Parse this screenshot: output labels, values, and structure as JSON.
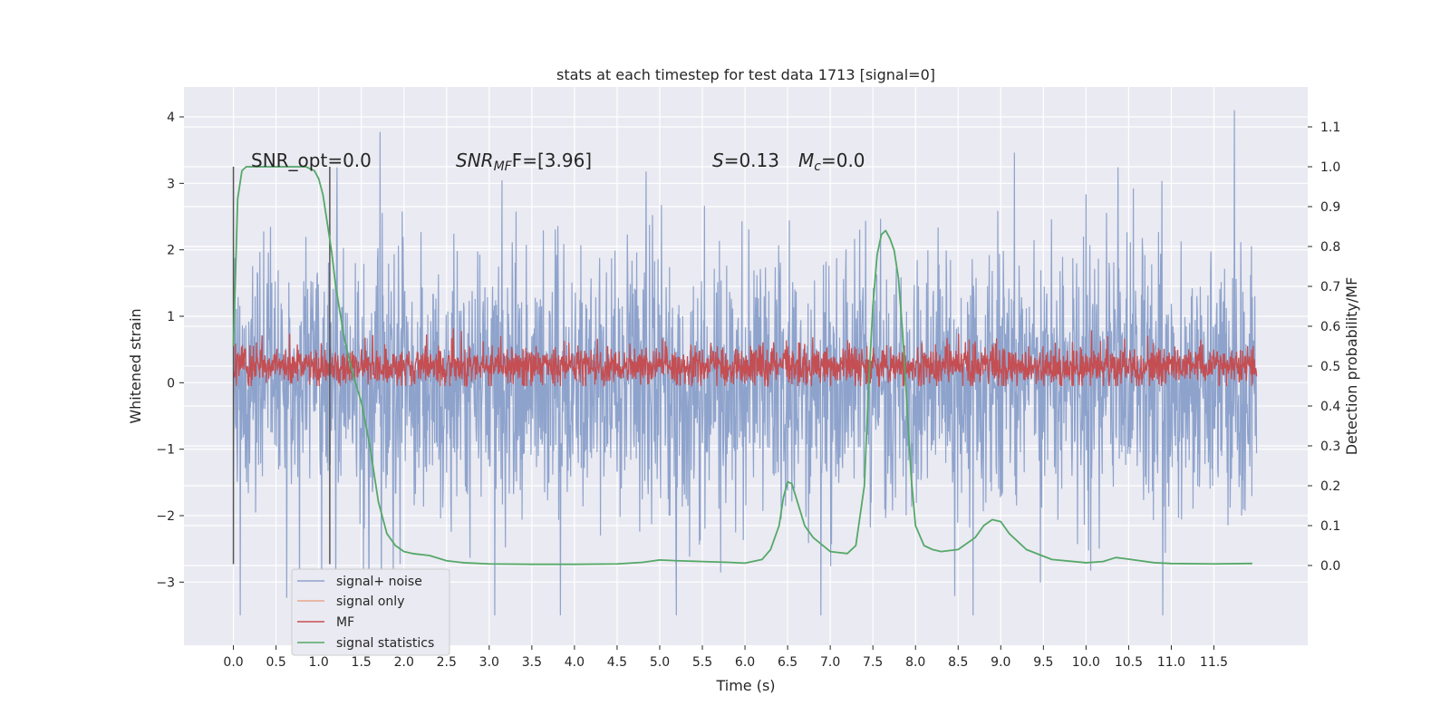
{
  "chart_data": {
    "type": "line",
    "title": "stats at each timestep for test data 1713 [signal=0]",
    "xlabel": "Time (s)",
    "ylabel": "Whitened strain",
    "y2label": "Detection probability/MF",
    "xlim": [
      -0.58,
      12.6
    ],
    "ylim": [
      -3.95,
      4.45
    ],
    "y2lim": [
      -0.2,
      1.2
    ],
    "x_ticks": [
      "0.0",
      "0.5",
      "1.0",
      "1.5",
      "2.0",
      "2.5",
      "3.0",
      "3.5",
      "4.0",
      "4.5",
      "5.0",
      "5.5",
      "6.0",
      "6.5",
      "7.0",
      "7.5",
      "8.0",
      "8.5",
      "9.0",
      "9.5",
      "10.0",
      "10.5",
      "11.0",
      "11.5"
    ],
    "y_ticks": [
      "4",
      "3",
      "2",
      "1",
      "0",
      "−1",
      "−2",
      "−3"
    ],
    "y2_ticks": [
      "1.1",
      "1.0",
      "0.9",
      "0.8",
      "0.7",
      "0.6",
      "0.5",
      "0.4",
      "0.3",
      "0.2",
      "0.1",
      "0.0"
    ],
    "grid": true,
    "legend_position": "lower-left",
    "annotations": {
      "snr_opt": "SNR_opt=0.0",
      "snr_mf_prefix": "SNR",
      "snr_mf_sub": "MF",
      "snr_mf_suffix": "F=[3.96]",
      "s_label": "S",
      "s_value": "=0.13",
      "mc_label": "M",
      "mc_sub": "c",
      "mc_value": "=0.0"
    },
    "window_markers": [
      0.0,
      1.13
    ],
    "series": [
      {
        "name": "signal+ noise",
        "color": "#8ea3cc",
        "axis": "left",
        "x_range": [
          0.0,
          12.0
        ],
        "typical_range": [
          -1.5,
          1.5
        ],
        "extremes": [
          -3.5,
          4.1
        ]
      },
      {
        "name": "signal only",
        "color": "#e8a88a",
        "axis": "left",
        "values": []
      },
      {
        "name": "MF",
        "color": "#c44e52",
        "axis": "left",
        "x_range": [
          0.0,
          12.0
        ],
        "center": 0.25,
        "typical_range": [
          0.0,
          0.7
        ],
        "extremes": [
          -0.05,
          1.0
        ]
      },
      {
        "name": "signal statistics",
        "color": "#55a868",
        "axis": "right",
        "x": [
          0.0,
          0.05,
          0.1,
          0.15,
          0.2,
          0.3,
          0.5,
          0.7,
          0.85,
          0.95,
          1.0,
          1.05,
          1.1,
          1.15,
          1.2,
          1.3,
          1.4,
          1.5,
          1.6,
          1.7,
          1.8,
          1.9,
          2.0,
          2.1,
          2.3,
          2.5,
          2.7,
          3.0,
          3.5,
          4.0,
          4.5,
          4.8,
          5.0,
          5.2,
          5.5,
          5.8,
          6.0,
          6.2,
          6.3,
          6.4,
          6.45,
          6.5,
          6.55,
          6.6,
          6.7,
          6.8,
          7.0,
          7.2,
          7.3,
          7.4,
          7.45,
          7.5,
          7.55,
          7.6,
          7.65,
          7.7,
          7.75,
          7.8,
          7.85,
          7.9,
          7.95,
          8.0,
          8.1,
          8.2,
          8.3,
          8.5,
          8.7,
          8.8,
          8.9,
          9.0,
          9.1,
          9.3,
          9.6,
          10.0,
          10.2,
          10.35,
          10.5,
          10.8,
          11.0,
          11.5,
          11.9,
          11.95
        ],
        "values": [
          0.55,
          0.92,
          0.99,
          1.0,
          1.0,
          1.0,
          1.0,
          1.0,
          1.0,
          0.99,
          0.97,
          0.93,
          0.86,
          0.79,
          0.7,
          0.57,
          0.48,
          0.41,
          0.3,
          0.16,
          0.08,
          0.05,
          0.035,
          0.03,
          0.025,
          0.012,
          0.007,
          0.004,
          0.003,
          0.003,
          0.004,
          0.008,
          0.014,
          0.012,
          0.01,
          0.008,
          0.006,
          0.015,
          0.04,
          0.1,
          0.17,
          0.21,
          0.205,
          0.17,
          0.1,
          0.07,
          0.035,
          0.03,
          0.05,
          0.2,
          0.45,
          0.65,
          0.78,
          0.83,
          0.84,
          0.82,
          0.79,
          0.72,
          0.58,
          0.4,
          0.22,
          0.1,
          0.05,
          0.04,
          0.035,
          0.04,
          0.07,
          0.1,
          0.115,
          0.11,
          0.08,
          0.04,
          0.015,
          0.007,
          0.01,
          0.02,
          0.016,
          0.007,
          0.005,
          0.004,
          0.005,
          0.005
        ]
      }
    ]
  }
}
